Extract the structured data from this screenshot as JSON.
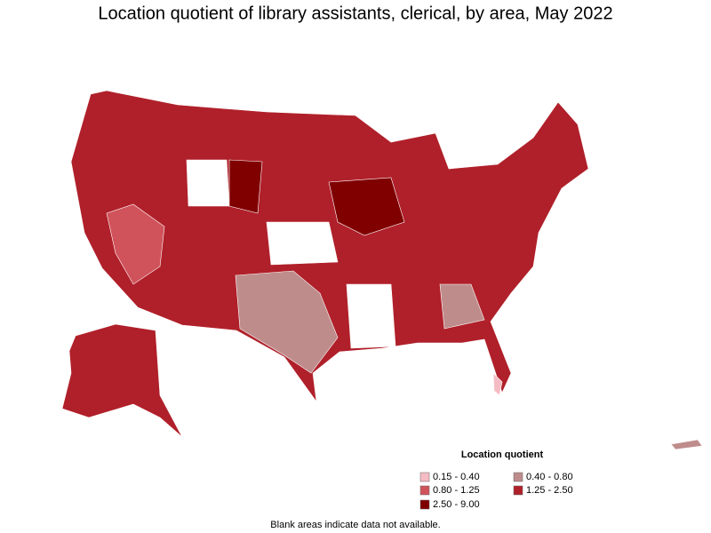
{
  "title": "Location quotient of library assistants, clerical, by area, May 2022",
  "legend": {
    "title": "Location quotient",
    "items": [
      {
        "label": "0.15 - 0.40",
        "color": "#f5bcc4"
      },
      {
        "label": "0.40 - 0.80",
        "color": "#bf8c8c"
      },
      {
        "label": "0.80 - 1.25",
        "color": "#d0535b"
      },
      {
        "label": "1.25 - 2.50",
        "color": "#b0202a"
      },
      {
        "label": "2.50 - 9.00",
        "color": "#800000"
      }
    ]
  },
  "footnote": "Blank areas indicate data not available."
}
